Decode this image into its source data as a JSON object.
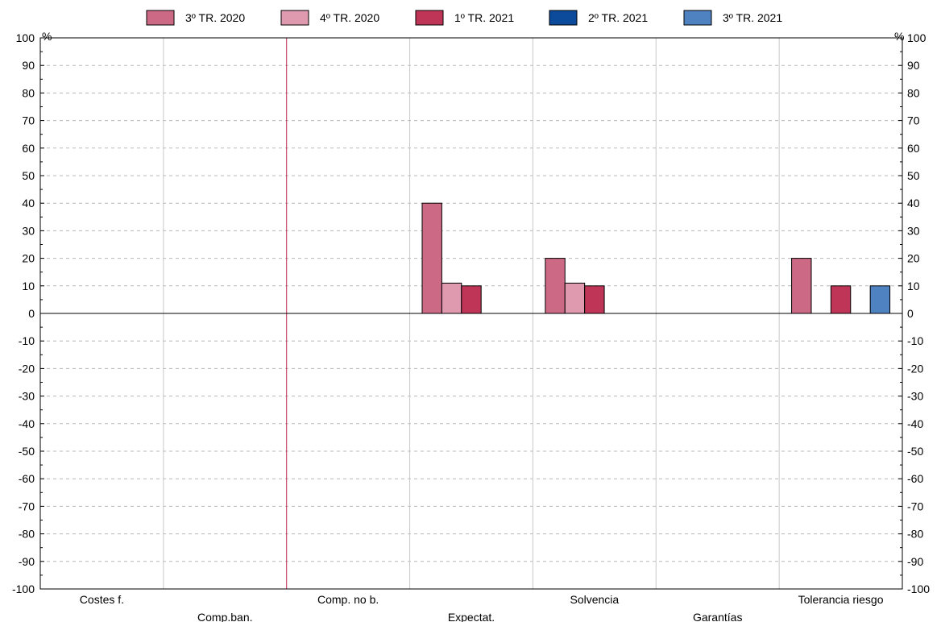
{
  "chart_data": {
    "type": "bar",
    "categories": [
      "Costes f.",
      "Comp.ban.",
      "Comp. no b.",
      "Expectat.",
      "Solvencia",
      "Garantías",
      "Tolerancia riesgo"
    ],
    "series": [
      {
        "name": "3º TR. 2020",
        "color": "#cc6a86",
        "values": [
          0,
          0,
          0,
          40,
          20,
          0,
          20
        ]
      },
      {
        "name": "4º TR. 2020",
        "color": "#e09aaf",
        "values": [
          0,
          0,
          0,
          11,
          11,
          0,
          0
        ]
      },
      {
        "name": "1º TR. 2021",
        "color": "#bf3558",
        "values": [
          0,
          0,
          0,
          10,
          10,
          0,
          10
        ]
      },
      {
        "name": "2º TR. 2021",
        "color": "#0c4a9b",
        "values": [
          0,
          0,
          0,
          0,
          0,
          0,
          0
        ]
      },
      {
        "name": "3º TR. 2021",
        "color": "#4f82c0",
        "values": [
          0,
          0,
          0,
          0,
          0,
          0,
          10
        ]
      }
    ],
    "ylim": [
      -100,
      100
    ],
    "ytick_step": 10,
    "y_unit_left": "%",
    "y_unit_right": "%",
    "grid": true,
    "legend_position": "top-center",
    "highlight_divider_color": "#c0284f"
  }
}
